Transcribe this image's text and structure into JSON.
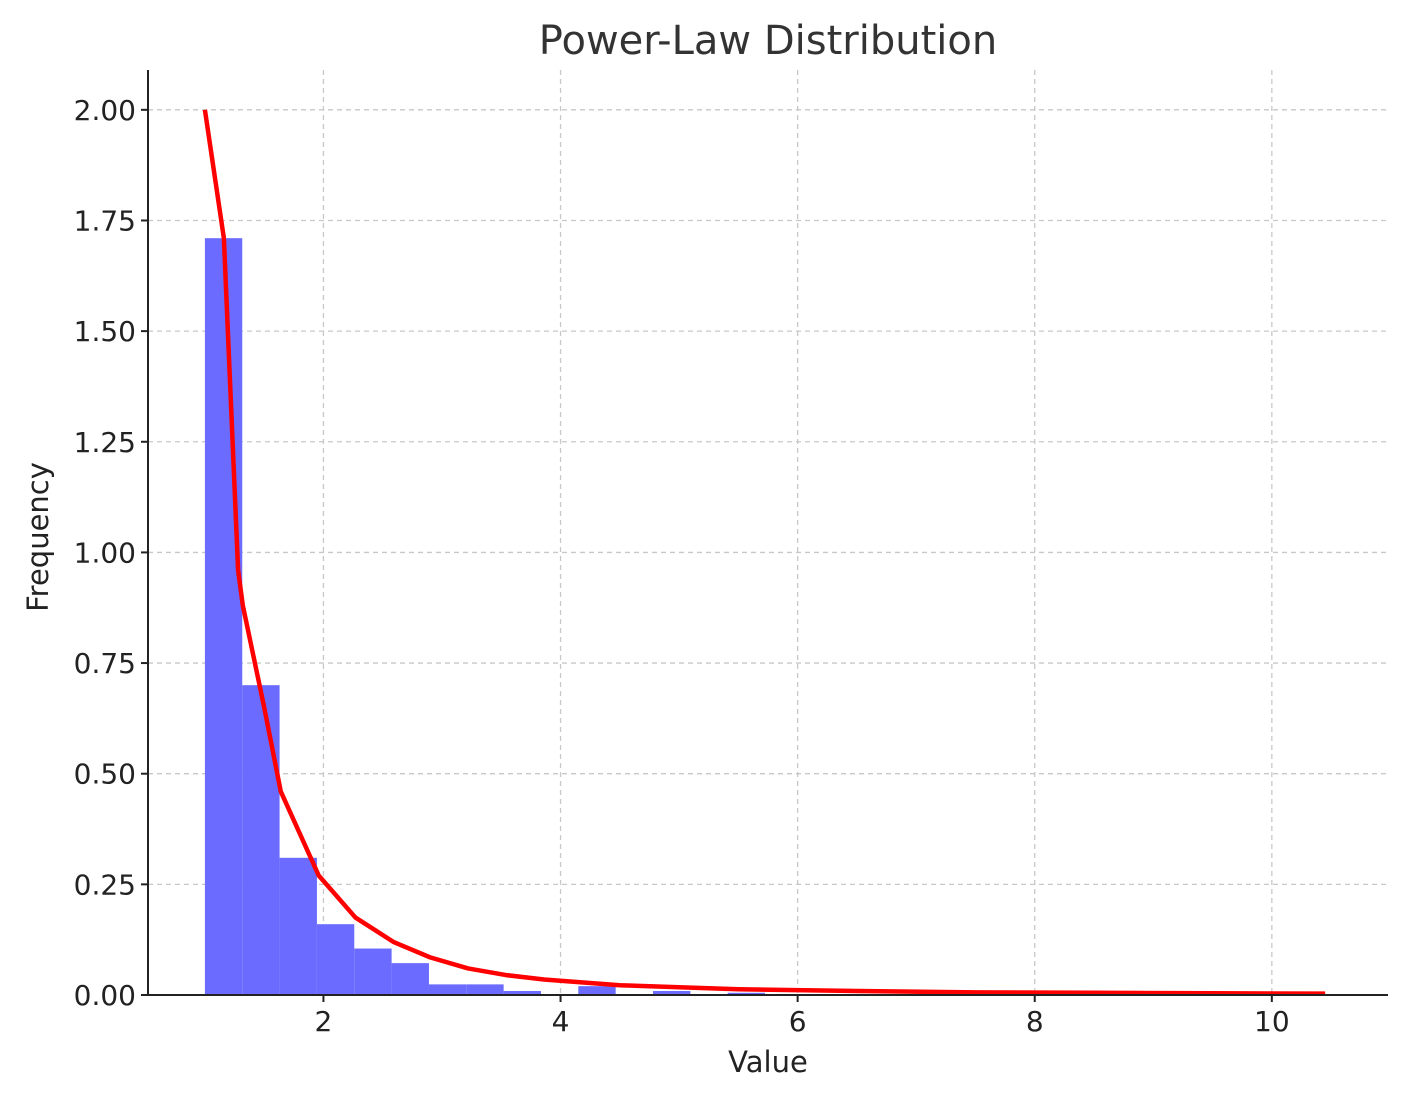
{
  "chart_data": {
    "type": "bar",
    "title": "Power-Law Distribution",
    "xlabel": "Value",
    "ylabel": "Frequency",
    "xlim": [
      0.52,
      10.98
    ],
    "ylim": [
      0.0,
      2.09
    ],
    "x_ticks": [
      2,
      4,
      6,
      8,
      10
    ],
    "y_ticks": [
      0.0,
      0.25,
      0.5,
      0.75,
      1.0,
      1.25,
      1.5,
      1.75,
      2.0
    ],
    "y_tick_labels": [
      "0.00",
      "0.25",
      "0.50",
      "0.75",
      "1.00",
      "1.25",
      "1.50",
      "1.75",
      "2.00"
    ],
    "grid": true,
    "colors": {
      "bars": "#6b6bff",
      "line": "#ff0000"
    },
    "series": [
      {
        "type": "histogram",
        "bins": [
          {
            "x0": 1.0,
            "x1": 1.315,
            "value": 1.71
          },
          {
            "x0": 1.315,
            "x1": 1.63,
            "value": 0.7
          },
          {
            "x0": 1.63,
            "x1": 1.945,
            "value": 0.31
          },
          {
            "x0": 1.945,
            "x1": 2.26,
            "value": 0.16
          },
          {
            "x0": 2.26,
            "x1": 2.575,
            "value": 0.105
          },
          {
            "x0": 2.575,
            "x1": 2.89,
            "value": 0.072
          },
          {
            "x0": 2.89,
            "x1": 3.205,
            "value": 0.024
          },
          {
            "x0": 3.205,
            "x1": 3.52,
            "value": 0.024
          },
          {
            "x0": 3.52,
            "x1": 3.835,
            "value": 0.009
          },
          {
            "x0": 3.835,
            "x1": 4.15,
            "value": 0.0
          },
          {
            "x0": 4.15,
            "x1": 4.465,
            "value": 0.02
          },
          {
            "x0": 4.465,
            "x1": 4.78,
            "value": 0.0
          },
          {
            "x0": 4.78,
            "x1": 5.095,
            "value": 0.009
          },
          {
            "x0": 5.095,
            "x1": 5.41,
            "value": 0.0
          },
          {
            "x0": 5.41,
            "x1": 5.725,
            "value": 0.005
          }
        ]
      },
      {
        "type": "line",
        "x": [
          1.0,
          1.16,
          1.28,
          1.32,
          1.5,
          1.64,
          1.96,
          2.27,
          2.59,
          2.9,
          3.22,
          3.54,
          3.86,
          4.5,
          5.5,
          6.5,
          7.5,
          8.5,
          9.5,
          10.45
        ],
        "y": [
          2.0,
          1.71,
          0.96,
          0.88,
          0.65,
          0.46,
          0.27,
          0.175,
          0.12,
          0.085,
          0.06,
          0.045,
          0.035,
          0.022,
          0.013,
          0.009,
          0.006,
          0.005,
          0.004,
          0.003
        ]
      }
    ]
  }
}
